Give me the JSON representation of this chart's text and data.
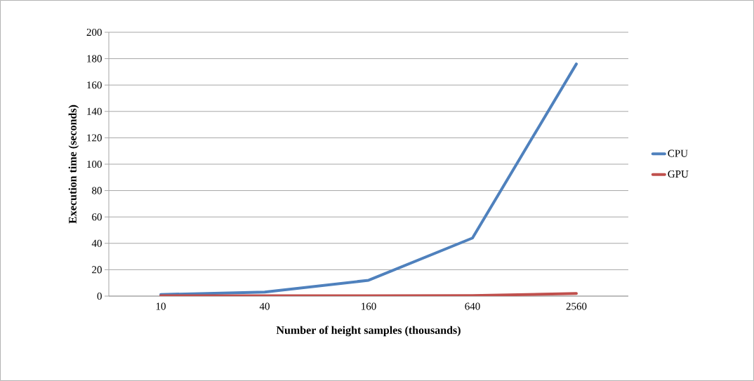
{
  "chart_data": {
    "type": "line",
    "xlabel": "Number of height samples (thousands)",
    "ylabel": "Execution time (seconds)",
    "categories": [
      "10",
      "40",
      "160",
      "640",
      "2560"
    ],
    "series": [
      {
        "name": "CPU",
        "color": "#4f81bd",
        "values": [
          1.2,
          3,
          12,
          44,
          176
        ]
      },
      {
        "name": "GPU",
        "color": "#c0504d",
        "values": [
          0.3,
          0.3,
          0.3,
          0.4,
          2
        ]
      }
    ],
    "ylim": [
      0,
      200
    ],
    "yticks": [
      0,
      20,
      40,
      60,
      80,
      100,
      120,
      140,
      160,
      180,
      200
    ],
    "grid": "y",
    "legend": "right",
    "marker": "none",
    "line_style": "solid"
  }
}
